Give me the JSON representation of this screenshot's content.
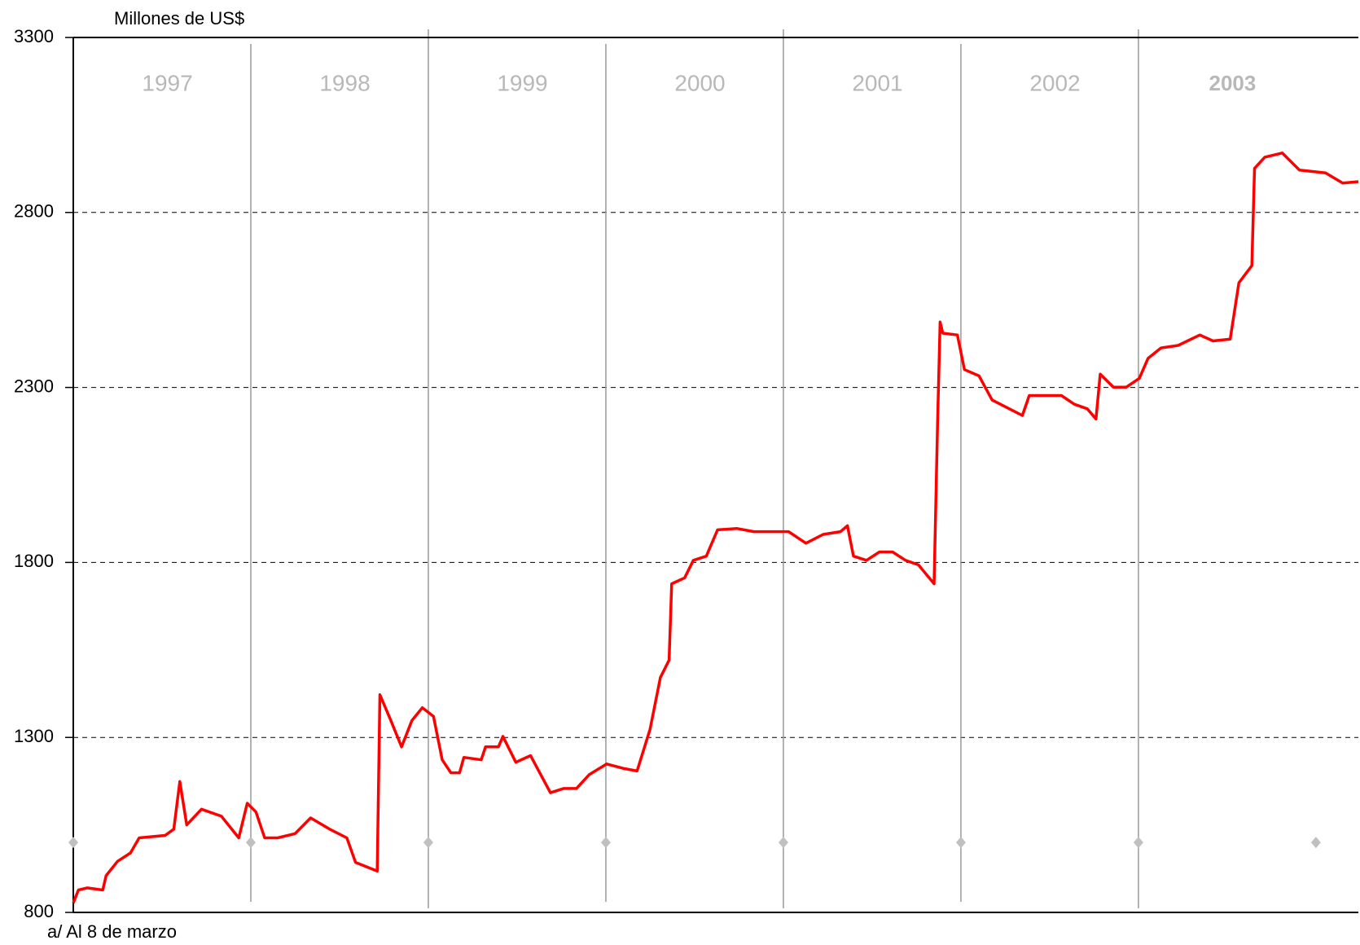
{
  "chart_data": {
    "type": "line",
    "y_axis_label": "Millones de US$",
    "footnote": "a/ Al  8 de marzo",
    "year_labels": [
      "1997",
      "1998",
      "1999",
      "2000",
      "2001",
      "2002",
      "2003"
    ],
    "ylim": [
      800,
      3300
    ],
    "yticks": [
      800,
      1300,
      1800,
      2300,
      2800,
      3300
    ],
    "grid": true,
    "xlim": [
      1997,
      2004.239
    ],
    "x": [
      1997.0,
      1997.029,
      1997.078,
      1997.166,
      1997.185,
      1997.249,
      1997.322,
      1997.371,
      1997.517,
      1997.566,
      1997.6,
      1997.639,
      1997.722,
      1997.834,
      1997.932,
      1997.98,
      1998.029,
      1998.078,
      1998.151,
      1998.249,
      1998.337,
      1998.444,
      1998.541,
      1998.59,
      1998.712,
      1998.727,
      1998.785,
      1998.849,
      1998.907,
      1998.966,
      1999.029,
      1999.078,
      1999.127,
      1999.176,
      1999.2,
      1999.298,
      1999.322,
      1999.395,
      1999.42,
      1999.493,
      1999.576,
      1999.615,
      1999.688,
      1999.761,
      1999.834,
      1999.907,
      2000.005,
      2000.102,
      2000.176,
      2000.249,
      2000.307,
      2000.356,
      2000.371,
      2000.444,
      2000.493,
      2000.566,
      2000.629,
      2000.737,
      2000.834,
      2000.956,
      2001.029,
      2001.127,
      2001.224,
      2001.322,
      2001.361,
      2001.395,
      2001.468,
      2001.541,
      2001.615,
      2001.688,
      2001.761,
      2001.849,
      2001.868,
      2001.883,
      2001.898,
      2001.98,
      2002.02,
      2002.102,
      2002.176,
      2002.273,
      2002.346,
      2002.385,
      2002.493,
      2002.566,
      2002.639,
      2002.712,
      2002.761,
      2002.785,
      2002.859,
      2002.932,
      2003.005,
      2003.054,
      2003.127,
      2003.224,
      2003.346,
      2003.42,
      2003.517,
      2003.566,
      2003.639,
      2003.654,
      2003.712,
      2003.81,
      2003.907,
      2004.054,
      2004.151,
      2004.239
    ],
    "series": [
      {
        "color": "#ff0000",
        "values": [
          827,
          864,
          870,
          864,
          905,
          946,
          970,
          1013,
          1020,
          1038,
          1174,
          1050,
          1095,
          1075,
          1013,
          1112,
          1087,
          1013,
          1013,
          1025,
          1070,
          1038,
          1013,
          943,
          918,
          1422,
          1353,
          1273,
          1348,
          1385,
          1360,
          1236,
          1199,
          1199,
          1243,
          1236,
          1273,
          1273,
          1303,
          1229,
          1248,
          1211,
          1142,
          1154,
          1154,
          1194,
          1224,
          1211,
          1204,
          1323,
          1471,
          1521,
          1739,
          1756,
          1806,
          1818,
          1893,
          1897,
          1888,
          1888,
          1888,
          1855,
          1880,
          1888,
          1905,
          1818,
          1806,
          1830,
          1830,
          1806,
          1793,
          1739,
          2190,
          2487,
          2455,
          2450,
          2351,
          2333,
          2264,
          2239,
          2220,
          2277,
          2277,
          2277,
          2252,
          2239,
          2210,
          2338,
          2301,
          2301,
          2326,
          2383,
          2413,
          2420,
          2450,
          2433,
          2438,
          2599,
          2648,
          2926,
          2958,
          2970,
          2921,
          2913,
          2884,
          2888
        ]
      }
    ],
    "markers": {
      "color": "#c0c0c0",
      "values": [
        1000,
        1000,
        1000,
        1000,
        1000,
        1000,
        1000,
        1000
      ]
    }
  }
}
